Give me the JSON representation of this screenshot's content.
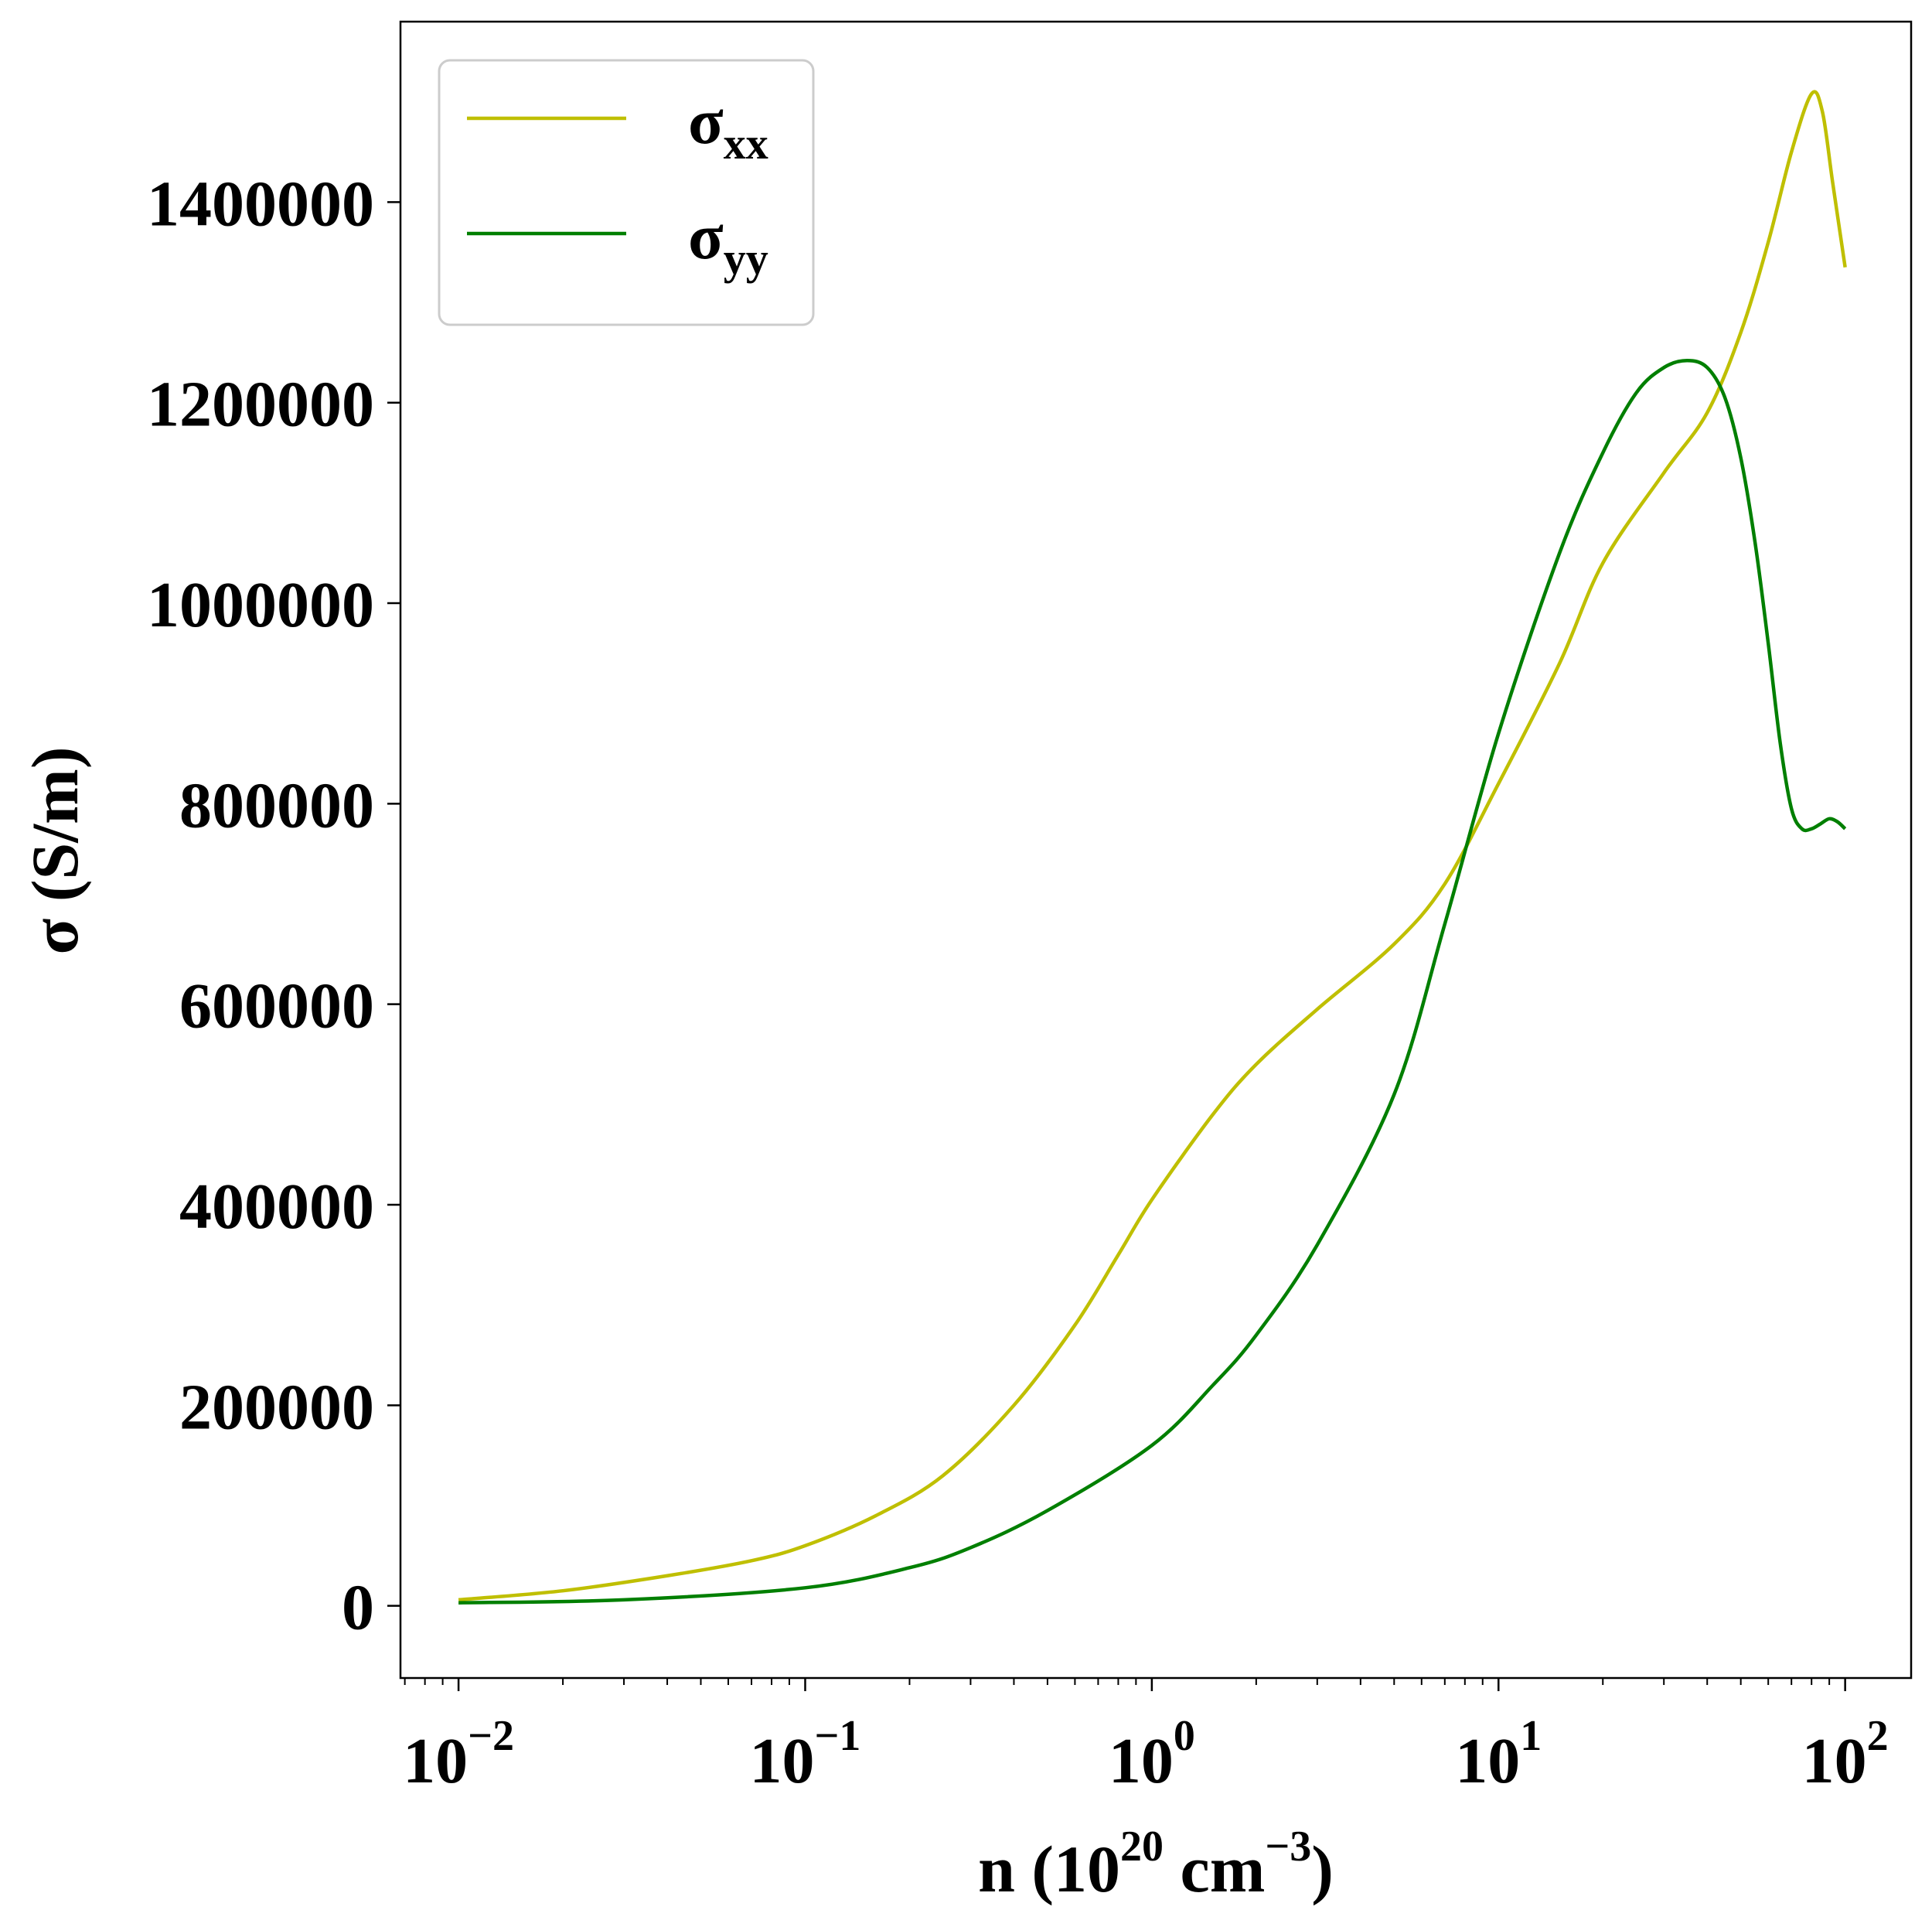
{
  "chart_data": {
    "type": "line",
    "x_scale": "log",
    "xlabel": "n (10^20 cm^-3)",
    "xlabel_parts": {
      "main": "n (10",
      "exp1": "20",
      "mid": " cm",
      "exp2": "−3",
      "end": ")"
    },
    "ylabel": "σ (S/m)",
    "xlim": [
      0.0068,
      155
    ],
    "ylim": [
      -72000,
      1580000
    ],
    "x_ticks": [
      {
        "value": 0.01,
        "base": "10",
        "exp": "−2"
      },
      {
        "value": 0.1,
        "base": "10",
        "exp": "−1"
      },
      {
        "value": 1,
        "base": "10",
        "exp": "0"
      },
      {
        "value": 10,
        "base": "10",
        "exp": "1"
      },
      {
        "value": 100,
        "base": "10",
        "exp": "2"
      }
    ],
    "y_ticks": [
      {
        "value": 0,
        "label": "0"
      },
      {
        "value": 200000,
        "label": "200000"
      },
      {
        "value": 400000,
        "label": "400000"
      },
      {
        "value": 600000,
        "label": "600000"
      },
      {
        "value": 800000,
        "label": "800000"
      },
      {
        "value": 1000000,
        "label": "1000000"
      },
      {
        "value": 1200000,
        "label": "1200000"
      },
      {
        "value": 1400000,
        "label": "1400000"
      }
    ],
    "legend_position": "top-left",
    "series": [
      {
        "name": "σxx",
        "symbol": "σ",
        "subscript": "xx",
        "color": "#bfbf00",
        "points": [
          [
            0.01,
            6000
          ],
          [
            0.02,
            15000
          ],
          [
            0.04,
            30000
          ],
          [
            0.07,
            45000
          ],
          [
            0.1,
            60000
          ],
          [
            0.16,
            90000
          ],
          [
            0.25,
            130000
          ],
          [
            0.4,
            200000
          ],
          [
            0.6,
            280000
          ],
          [
            0.8,
            350000
          ],
          [
            1.0,
            405000
          ],
          [
            1.5,
            490000
          ],
          [
            2.0,
            540000
          ],
          [
            3.0,
            595000
          ],
          [
            5.0,
            660000
          ],
          [
            7.0,
            720000
          ],
          [
            10.0,
            820000
          ],
          [
            15.0,
            940000
          ],
          [
            20.0,
            1040000
          ],
          [
            30.0,
            1130000
          ],
          [
            40.0,
            1190000
          ],
          [
            50.0,
            1270000
          ],
          [
            60.0,
            1360000
          ],
          [
            70.0,
            1450000
          ],
          [
            80.0,
            1508000
          ],
          [
            86.0,
            1490000
          ],
          [
            92.0,
            1420000
          ],
          [
            100.0,
            1335000
          ]
        ]
      },
      {
        "name": "σyy",
        "symbol": "σ",
        "subscript": "yy",
        "color": "#007f00",
        "points": [
          [
            0.01,
            3000
          ],
          [
            0.03,
            6000
          ],
          [
            0.1,
            18000
          ],
          [
            0.2,
            38000
          ],
          [
            0.3,
            58000
          ],
          [
            0.5,
            95000
          ],
          [
            1.0,
            160000
          ],
          [
            1.5,
            220000
          ],
          [
            2.0,
            270000
          ],
          [
            3.0,
            360000
          ],
          [
            5.0,
            510000
          ],
          [
            7.0,
            680000
          ],
          [
            10.0,
            870000
          ],
          [
            15.0,
            1050000
          ],
          [
            20.0,
            1150000
          ],
          [
            25.0,
            1210000
          ],
          [
            30.0,
            1235000
          ],
          [
            35.0,
            1242000
          ],
          [
            40.0,
            1235000
          ],
          [
            45.0,
            1205000
          ],
          [
            50.0,
            1145000
          ],
          [
            55.0,
            1060000
          ],
          [
            60.0,
            960000
          ],
          [
            65.0,
            860000
          ],
          [
            70.0,
            795000
          ],
          [
            75.0,
            775000
          ],
          [
            80.0,
            775000
          ],
          [
            85.0,
            780000
          ],
          [
            90.0,
            785000
          ],
          [
            95.0,
            782000
          ],
          [
            100.0,
            775000
          ]
        ]
      }
    ]
  }
}
